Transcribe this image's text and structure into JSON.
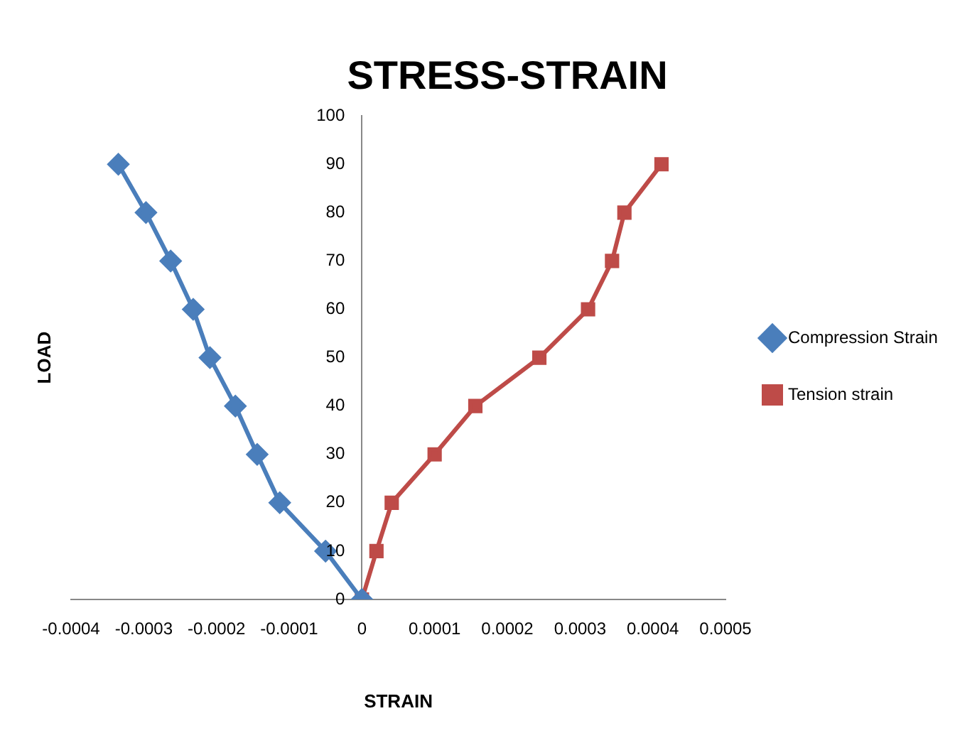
{
  "chart_data": {
    "type": "scatter",
    "title": "STRESS-STRAIN",
    "xlabel": "STRAIN",
    "ylabel": "LOAD",
    "xlim": [
      -0.0004,
      0.0005
    ],
    "xticks": [
      -0.0004,
      -0.0003,
      -0.0002,
      -0.0001,
      0,
      0.0001,
      0.0002,
      0.0003,
      0.0004,
      0.0005
    ],
    "ylim": [
      0,
      100
    ],
    "yticks": [
      0,
      10,
      20,
      30,
      40,
      50,
      60,
      70,
      80,
      90,
      100
    ],
    "grid": false,
    "legend": "right",
    "line_style": "solid",
    "series": [
      {
        "name": "Compression Strain",
        "type": "line",
        "marker": "diamond",
        "color": "#4a7ebb",
        "x": [
          -0.000335,
          -0.000297,
          -0.000263,
          -0.000232,
          -0.000209,
          -0.000174,
          -0.000144,
          -0.000113,
          -5e-05,
          0
        ],
        "values": [
          90,
          80,
          70,
          60,
          50,
          40,
          30,
          20,
          10,
          0
        ]
      },
      {
        "name": "Tension strain",
        "type": "line",
        "marker": "square",
        "color": "#be4b48",
        "x": [
          0,
          2e-05,
          4.1e-05,
          0.0001,
          0.000156,
          0.000244,
          0.000311,
          0.000344,
          0.000361,
          0.000412
        ],
        "values": [
          0,
          10,
          20,
          30,
          40,
          50,
          60,
          70,
          80,
          90
        ]
      }
    ]
  }
}
